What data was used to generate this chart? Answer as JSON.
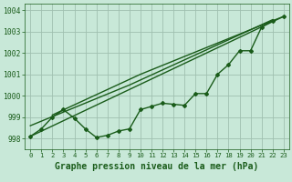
{
  "title": "Graphe pression niveau de la mer (hPa)",
  "bg_color": "#c8e8d8",
  "grid_color": "#a0c0b0",
  "line_color": "#1a5c1a",
  "xlim": [
    -0.5,
    23.5
  ],
  "ylim": [
    997.5,
    1004.3
  ],
  "yticks": [
    998,
    999,
    1000,
    1001,
    1002,
    1003,
    1004
  ],
  "xticks": [
    0,
    1,
    2,
    3,
    4,
    5,
    6,
    7,
    8,
    9,
    10,
    11,
    12,
    13,
    14,
    15,
    16,
    17,
    18,
    19,
    20,
    21,
    22,
    23
  ],
  "main_series": [
    [
      0,
      998.1
    ],
    [
      1,
      998.45
    ],
    [
      2,
      999.0
    ],
    [
      3,
      999.35
    ],
    [
      4,
      998.95
    ],
    [
      5,
      998.45
    ],
    [
      6,
      998.05
    ],
    [
      7,
      998.15
    ],
    [
      8,
      998.35
    ],
    [
      9,
      998.45
    ],
    [
      10,
      999.35
    ],
    [
      11,
      999.5
    ],
    [
      12,
      999.65
    ],
    [
      13,
      999.6
    ],
    [
      14,
      999.55
    ],
    [
      15,
      1000.1
    ],
    [
      16,
      1000.1
    ],
    [
      17,
      1001.0
    ],
    [
      18,
      1001.45
    ],
    [
      19,
      1002.1
    ],
    [
      20,
      1002.1
    ],
    [
      21,
      1003.2
    ],
    [
      22,
      1003.5
    ],
    [
      23,
      1003.7
    ]
  ],
  "trend_series1": [
    [
      0,
      998.1
    ],
    [
      23,
      1003.7
    ]
  ],
  "trend_series2": [
    [
      0,
      998.6
    ],
    [
      9,
      1000.5
    ],
    [
      22,
      1003.55
    ]
  ],
  "trend_series3": [
    [
      2,
      999.1
    ],
    [
      10,
      1001.0
    ],
    [
      22,
      1003.5
    ]
  ]
}
